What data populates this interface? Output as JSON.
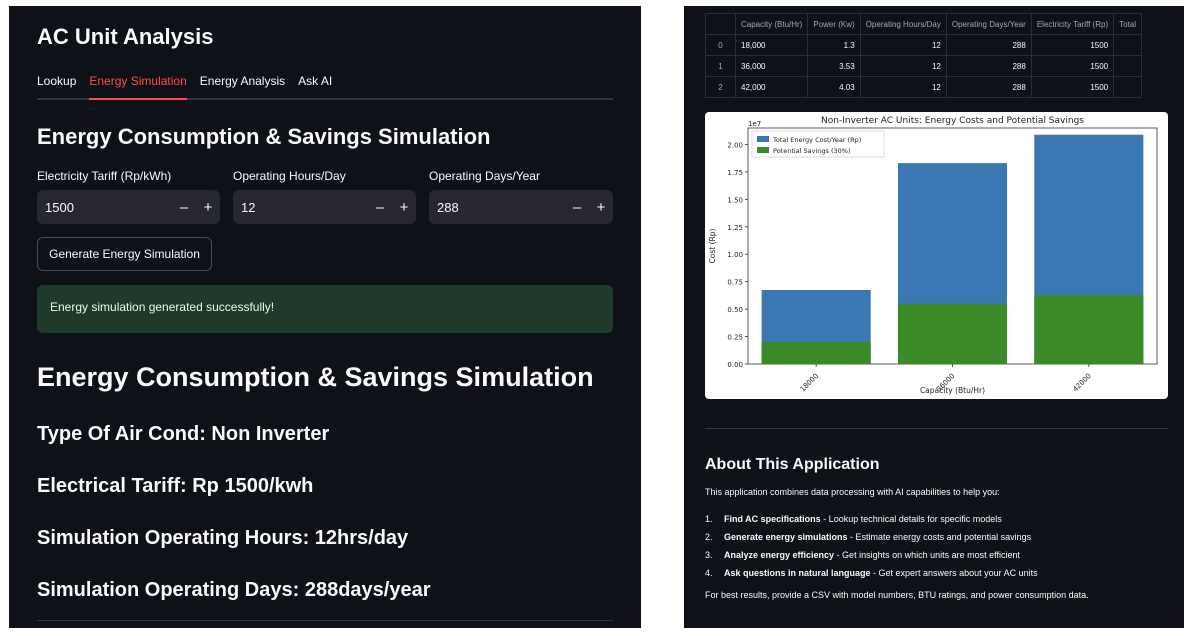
{
  "app": {
    "title": "AC Unit Analysis",
    "tabs": [
      {
        "label": "Lookup"
      },
      {
        "label": "Energy Simulation"
      },
      {
        "label": "Energy Analysis"
      },
      {
        "label": "Ask AI"
      }
    ],
    "active_tab": "Energy Simulation"
  },
  "simulation": {
    "heading": "Energy Consumption & Savings Simulation",
    "inputs": [
      {
        "label": "Electricity Tariff (Rp/kWh)",
        "value": "1500"
      },
      {
        "label": "Operating Hours/Day",
        "value": "12"
      },
      {
        "label": "Operating Days/Year",
        "value": "288"
      }
    ],
    "stepper": {
      "minus": "–",
      "plus": "+"
    },
    "button_label": "Generate Energy Simulation",
    "success_message": "Energy simulation generated successfully!"
  },
  "results": {
    "heading": "Energy Consumption & Savings Simulation",
    "type": "Type Of Air Cond: Non Inverter",
    "tariff": "Electrical Tariff: Rp 1500/kwh",
    "hours": "Simulation Operating Hours: 12hrs/day",
    "days": "Simulation Operating Days: 288days/year"
  },
  "table": {
    "columns": [
      "",
      "Capacity (Btu/Hr)",
      "Power (Kw)",
      "Operating Hours/Day",
      "Operating Days/Year",
      "Electricity Tariff (Rp)",
      "Total"
    ],
    "rows": [
      [
        "0",
        "18,000",
        "1.3",
        "12",
        "288",
        "1500",
        ""
      ],
      [
        "1",
        "36,000",
        "3.53",
        "12",
        "288",
        "1500",
        ""
      ],
      [
        "2",
        "42,000",
        "4.03",
        "12",
        "288",
        "1500",
        ""
      ]
    ]
  },
  "chart_data": {
    "type": "bar",
    "title": "Non-Inverter AC Units: Energy Costs and Potential Savings",
    "xlabel": "Capacity (Btu/Hr)",
    "ylabel": "Cost (Rp)",
    "y_multiplier": "1e7",
    "categories": [
      "18000",
      "36000",
      "42000"
    ],
    "series": [
      {
        "name": "Total Energy Cost/Year (Rp)",
        "values": [
          6740000,
          18300000,
          20890000
        ],
        "color": "#3b78b3"
      },
      {
        "name": "Potential Savings (30%)",
        "values": [
          2020000,
          5490000,
          6270000
        ],
        "color": "#3a8a2a"
      }
    ],
    "ylim": [
      0,
      21500000
    ],
    "yticks": [
      "0.00",
      "0.25",
      "0.50",
      "0.75",
      "1.00",
      "1.25",
      "1.50",
      "1.75",
      "2.00"
    ],
    "legend": "top-left",
    "grid": false
  },
  "about": {
    "title": "About This Application",
    "intro": "This application combines data processing with AI capabilities to help you:",
    "items": [
      {
        "num": "1.",
        "bold": "Find AC specifications",
        "rest": " - Lookup technical details for specific models"
      },
      {
        "num": "2.",
        "bold": "Generate energy simulations",
        "rest": " - Estimate energy costs and potential savings"
      },
      {
        "num": "3.",
        "bold": "Analyze energy efficiency",
        "rest": " - Get insights on which units are most efficient"
      },
      {
        "num": "4.",
        "bold": "Ask questions in natural language",
        "rest": " - Get expert answers about your AC units"
      }
    ],
    "footer": "For best results, provide a CSV with model numbers, BTU ratings, and power consumption data."
  }
}
